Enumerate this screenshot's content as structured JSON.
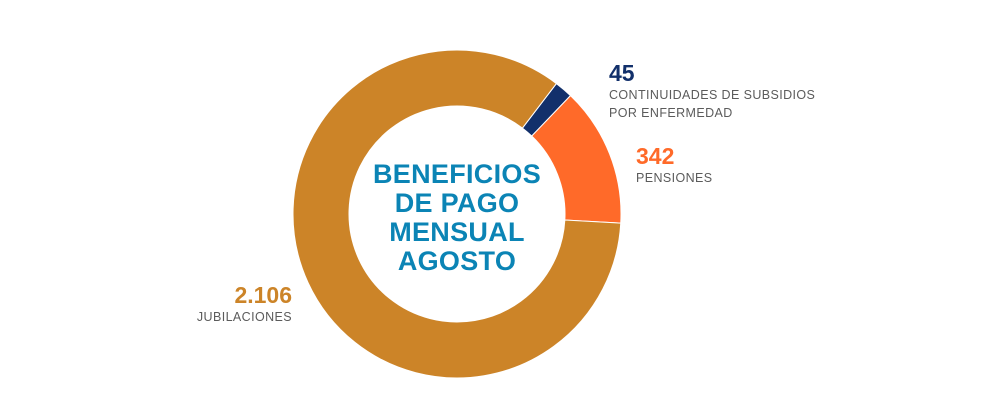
{
  "chart_data": {
    "type": "pie",
    "donut": true,
    "title_lines": [
      "BENEFICIOS",
      "DE PAGO",
      "MENSUAL",
      "AGOSTO"
    ],
    "slices": [
      {
        "label": "CONTINUIDADES DE SUBSIDIOS POR ENFERMEDAD",
        "value": 45,
        "display": "45",
        "color": "#12306b"
      },
      {
        "label": "PENSIONES",
        "value": 342,
        "display": "342",
        "color": "#ff6a29"
      },
      {
        "label": "JUBILACIONES",
        "value": 2106,
        "display": "2.106",
        "color": "#cc8428"
      }
    ],
    "label_lines": {
      "subsidios": [
        "CONTINUIDADES DE SUBSIDIOS",
        "POR ENFERMEDAD"
      ],
      "pensiones": [
        "PENSIONES"
      ],
      "jubilaciones": [
        "JUBILACIONES"
      ]
    }
  }
}
